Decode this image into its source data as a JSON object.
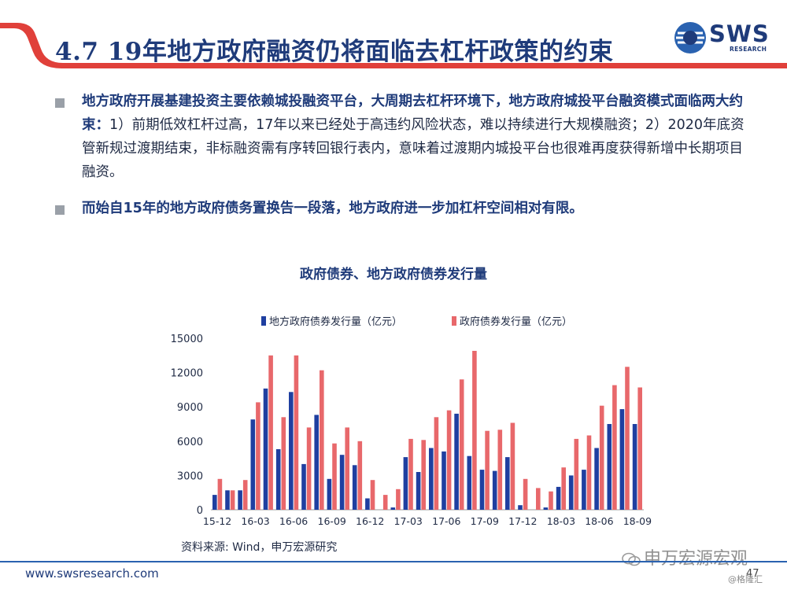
{
  "slide": {
    "title": "4.7 19年地方政府融资仍将面临去杠杆政策的约束",
    "logo": {
      "text": "SWS",
      "sub": "RESEARCH"
    },
    "bullets": [
      {
        "bold": "地方政府开展基建投资主要依赖城投融资平台，大周期去杠杆环境下，地方政府城投平台融资模式面临两大约束：",
        "normal": "1）前期低效杠杆过高，17年以来已经处于高违约风险状态，难以持续进行大规模融资；2）2020年底资管新规过渡期结束，非标融资需有序转回银行表内，意味着过渡期内城投平台也很难再度获得新增中长期项目融资。"
      },
      {
        "bold": "而始自15年的地方政府债务置换告一段落，地方政府进一步加杠杆空间相对有限。",
        "normal": ""
      }
    ],
    "source": "资料来源: Wind，申万宏源研究",
    "footer_url": "www.swsresearch.com",
    "page_number": "47",
    "watermark": "申万宏源宏观",
    "watermark2": "@格隆汇"
  },
  "colors": {
    "local_series": "#1f3fa0",
    "gov_series": "#e8686b",
    "title_color": "#1f3b7a",
    "swoosh_red": "#e0403a"
  },
  "chart_data": {
    "type": "bar",
    "title": "政府债券、地方政府债券发行量",
    "ylim": [
      0,
      15000
    ],
    "yticks": [
      "0",
      "3000",
      "6000",
      "9000",
      "12000",
      "15000"
    ],
    "xtick_labels": [
      "15-12",
      "16-03",
      "16-06",
      "16-09",
      "16-12",
      "17-03",
      "17-06",
      "17-09",
      "17-12",
      "18-03",
      "18-06",
      "18-09"
    ],
    "categories": [
      "15-12",
      "16-01",
      "16-02",
      "16-03",
      "16-04",
      "16-05",
      "16-06",
      "16-07",
      "16-08",
      "16-09",
      "16-10",
      "16-11",
      "16-12",
      "17-01",
      "17-02",
      "17-03",
      "17-04",
      "17-05",
      "17-06",
      "17-07",
      "17-08",
      "17-09",
      "17-10",
      "17-11",
      "17-12",
      "18-01",
      "18-02",
      "18-03",
      "18-04",
      "18-05",
      "18-06",
      "18-07",
      "18-08",
      "18-09"
    ],
    "series": [
      {
        "name": "地方政府债券发行量（亿元）",
        "values": [
          1300,
          1700,
          1700,
          7900,
          10600,
          5300,
          10300,
          4000,
          8300,
          2700,
          4800,
          3900,
          1000,
          0,
          200,
          4600,
          3300,
          5400,
          5100,
          8400,
          4700,
          3500,
          3400,
          4600,
          400,
          0,
          200,
          2000,
          3000,
          3500,
          5400,
          7500,
          8800,
          7500
        ]
      },
      {
        "name": "政府债券发行量（亿元）",
        "values": [
          2700,
          1700,
          2600,
          9400,
          13500,
          8100,
          13500,
          7200,
          12200,
          5800,
          7200,
          6000,
          2600,
          1300,
          1800,
          6200,
          6100,
          8100,
          8700,
          11400,
          13900,
          6900,
          7000,
          7600,
          2700,
          1900,
          1600,
          3700,
          6200,
          6500,
          9100,
          10900,
          12500,
          10700
        ]
      }
    ]
  }
}
